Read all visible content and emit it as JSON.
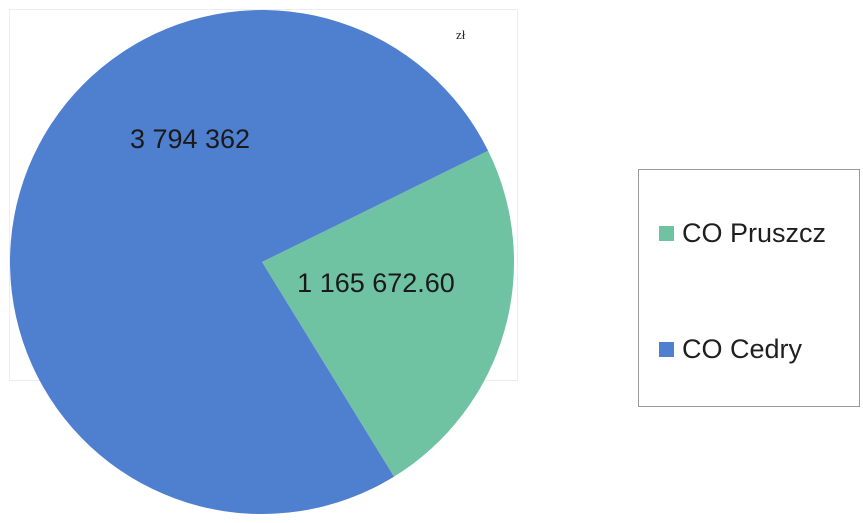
{
  "chart_data": {
    "type": "pie",
    "unit": "zł",
    "slices": [
      {
        "label": "CO Pruszcz",
        "value": 1165672.6,
        "value_label": "1 165 672.60",
        "color": "#6fc3a2"
      },
      {
        "label": "CO Cedry",
        "value": 3794362,
        "value_label": "3 794 362",
        "color": "#4f7fcf"
      }
    ],
    "legend_position": "right"
  }
}
